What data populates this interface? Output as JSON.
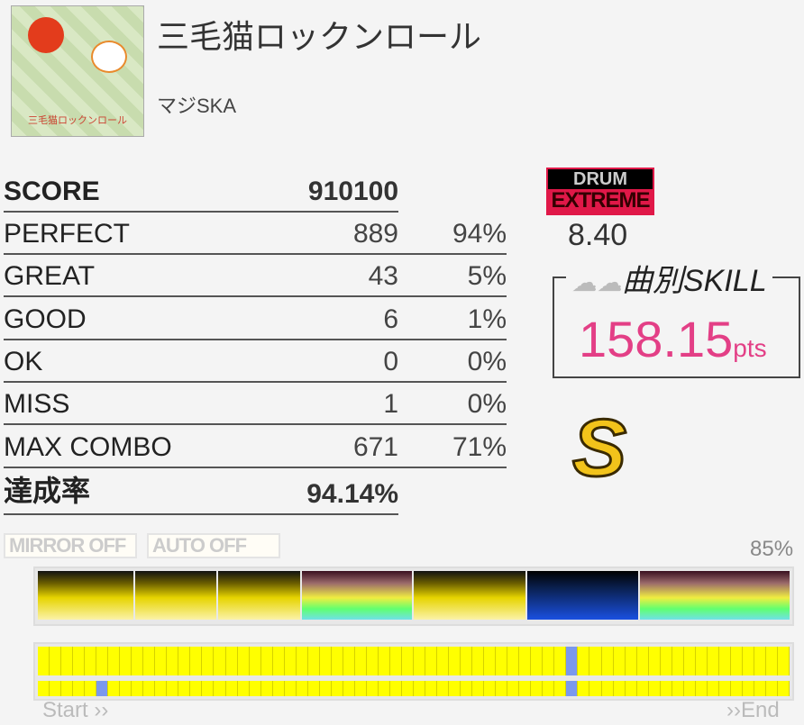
{
  "song": {
    "title": "三毛猫ロックンロール",
    "artist": "マジSKA",
    "jacket_text": "三毛猫ロックンロール"
  },
  "results": {
    "score_label": "SCORE",
    "score": "910100",
    "rows": [
      {
        "label": "PERFECT",
        "count": "889",
        "percent": "94%"
      },
      {
        "label": "GREAT",
        "count": "43",
        "percent": "5%"
      },
      {
        "label": "GOOD",
        "count": "6",
        "percent": "1%"
      },
      {
        "label": "OK",
        "count": "0",
        "percent": "0%"
      },
      {
        "label": "MISS",
        "count": "1",
        "percent": "0%"
      },
      {
        "label": "MAX COMBO",
        "count": "671",
        "percent": "71%"
      }
    ],
    "achievement_label": "達成率",
    "achievement": "94.14%"
  },
  "difficulty": {
    "instrument": "DRUM",
    "level_name": "EXTREME",
    "level": "8.40",
    "color": "#e01848"
  },
  "skill": {
    "label_prefix": "曲別",
    "label": "SKILL",
    "value": "158.15",
    "unit": "pts",
    "color": "#e33f86"
  },
  "rank": {
    "letter": "S",
    "icon": "rank-s-crown-icon"
  },
  "options": {
    "mirror": "MIRROR OFF",
    "auto": "AUTO OFF"
  },
  "gauge_percent": "85%",
  "sections": [
    "yellow",
    "yellow",
    "yellow",
    "rainbow",
    "yellow",
    "blue",
    "rainbow"
  ],
  "progress": {
    "cells": 64,
    "top_miss_cells": [
      45
    ],
    "bottom_miss_cells": [
      5,
      45
    ],
    "start": "Start ››",
    "end": "››End"
  }
}
